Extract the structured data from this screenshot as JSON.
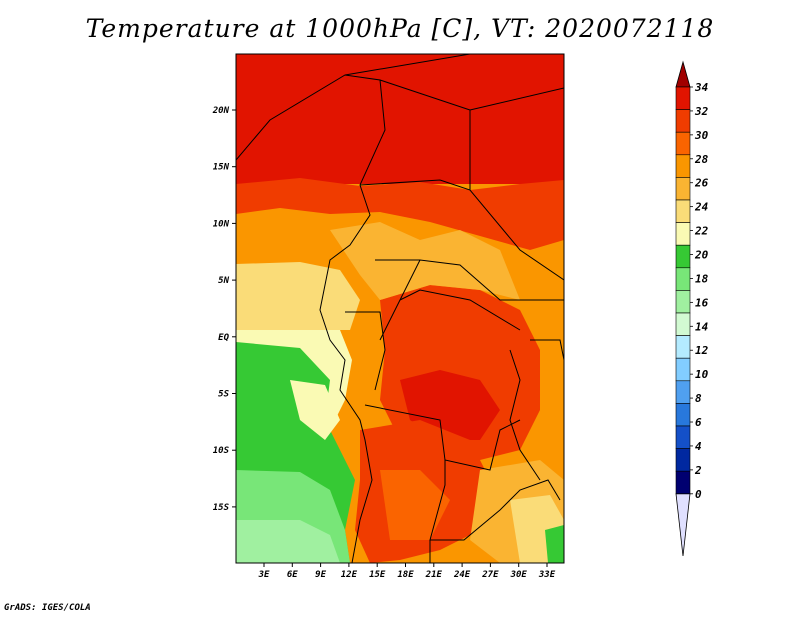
{
  "title": "Temperature at 1000hPa [C], VT: 2020072118",
  "credit": "GrADS: IGES/COLA",
  "map": {
    "lon_labels": [
      "3E",
      "6E",
      "9E",
      "12E",
      "15E",
      "18E",
      "21E",
      "24E",
      "27E",
      "30E",
      "33E"
    ],
    "lat_labels": [
      "20N",
      "15N",
      "10N",
      "5N",
      "EQ",
      "5S",
      "10S",
      "15S"
    ]
  },
  "colorbar": {
    "labels": [
      "34",
      "32",
      "30",
      "28",
      "26",
      "24",
      "22",
      "20",
      "18",
      "16",
      "14",
      "12",
      "10",
      "8",
      "6",
      "4",
      "2",
      "0"
    ],
    "colors": [
      "#a00000",
      "#e11400",
      "#f03c00",
      "#fa6400",
      "#fa9600",
      "#fab432",
      "#fadc78",
      "#fafab4",
      "#36c934",
      "#78e678",
      "#a0f0a0",
      "#d2fad2",
      "#b4ebff",
      "#82cdff",
      "#50a0f0",
      "#2878dc",
      "#1450c8",
      "#0028a0",
      "#000070",
      "#e0e0ff"
    ]
  }
}
